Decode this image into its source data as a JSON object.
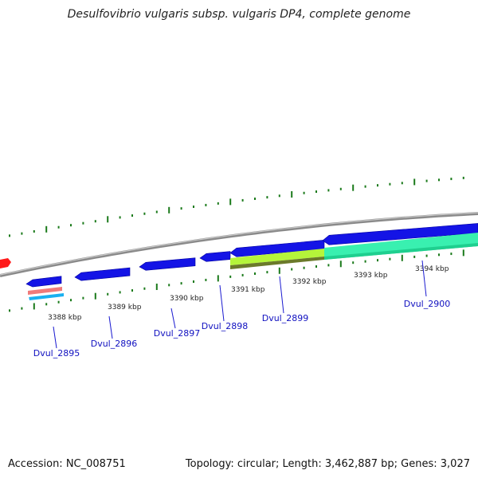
{
  "title": "Desulfovibrio vulgaris subsp. vulgaris DP4, complete genome",
  "footer": {
    "accession": "Accession: NC_008751",
    "summary": "Topology: circular; Length: 3,462,887 bp; Genes: 3,027"
  },
  "ticks": {
    "kbp_labels": [
      "3388 kbp",
      "3389 kbp",
      "3390 kbp",
      "3391 kbp",
      "3392 kbp",
      "3393 kbp",
      "3394 kbp"
    ]
  },
  "genes": [
    "Dvul_2895",
    "Dvul_2896",
    "Dvul_2897",
    "Dvul_2898",
    "Dvul_2899",
    "Dvul_2900"
  ],
  "colors": {
    "backbone": "#8a8a8a",
    "cds": "#1414e6",
    "tick": "#1a7a1a",
    "feature_red": "#ff1a1a",
    "feature_lime": "#b5f53a",
    "feature_olive": "#6b7a2a",
    "feature_aqua": "#39f0b0",
    "feature_pink": "#f07a7a",
    "feature_cyan": "#1ab0f0"
  }
}
